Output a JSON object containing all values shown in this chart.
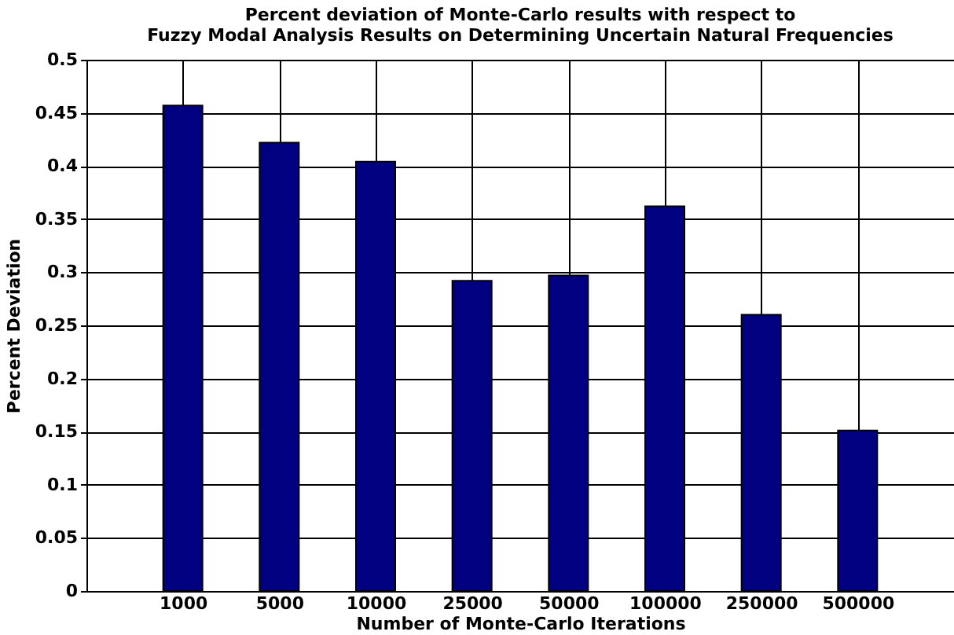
{
  "chart_data": {
    "type": "bar",
    "title": "Percent deviation of Monte-Carlo results with respect to\nFuzzy Modal Analysis Results on Determining Uncertain Natural Frequencies",
    "xlabel": "Number of Monte-Carlo Iterations",
    "ylabel": "Percent Deviation",
    "categories": [
      "1000",
      "5000",
      "10000",
      "25000",
      "50000",
      "100000",
      "250000",
      "500000"
    ],
    "values": [
      0.457,
      0.422,
      0.404,
      0.292,
      0.297,
      0.362,
      0.26,
      0.151
    ],
    "color": "#000080",
    "ylim": [
      0,
      0.5
    ],
    "yticks": [
      0,
      0.05,
      0.1,
      0.15,
      0.2,
      0.25,
      0.3,
      0.35,
      0.4,
      0.45,
      0.5
    ],
    "grid": true
  }
}
